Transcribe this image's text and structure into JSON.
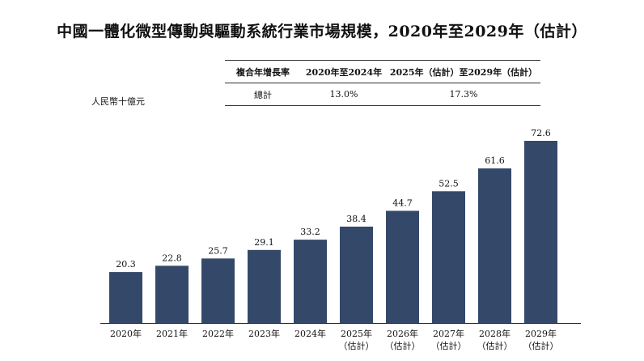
{
  "title": "中國一體化微型傳動與驅動系統行業市場規模，2020年至2029年（估計）",
  "unit": "人民幣十億元",
  "cagr_table": {
    "header": [
      "複合年增長率",
      "2020年至2024年",
      "2025年（估計）至2029年（估計）"
    ],
    "row": [
      "總計",
      "13.0%",
      "17.3%"
    ]
  },
  "chart_data": {
    "type": "bar",
    "title": "中國一體化微型傳動與驅動系統行業市場規模，2020年至2029年（估計）",
    "ylabel": "人民幣十億元",
    "categories": [
      "2020年",
      "2021年",
      "2022年",
      "2023年",
      "2024年",
      "2025年（估計）",
      "2026年（估計）",
      "2027年（估計）",
      "2028年（估計）",
      "2029年（估計）"
    ],
    "category_lines": [
      [
        "2020年"
      ],
      [
        "2021年"
      ],
      [
        "2022年"
      ],
      [
        "2023年"
      ],
      [
        "2024年"
      ],
      [
        "2025年",
        "（估計）"
      ],
      [
        "2026年",
        "（估計）"
      ],
      [
        "2027年",
        "（估計）"
      ],
      [
        "2028年",
        "（估計）"
      ],
      [
        "2029年",
        "（估計）"
      ]
    ],
    "values": [
      20.3,
      22.8,
      25.7,
      29.1,
      33.2,
      38.4,
      44.7,
      52.5,
      61.6,
      72.6
    ],
    "data_labels": [
      "20.3",
      "22.8",
      "25.7",
      "29.1",
      "33.2",
      "38.4",
      "44.7",
      "52.5",
      "61.6",
      "72.6"
    ],
    "ylim": [
      0,
      72.6
    ],
    "grid": false,
    "bar_color": "#34496a"
  }
}
